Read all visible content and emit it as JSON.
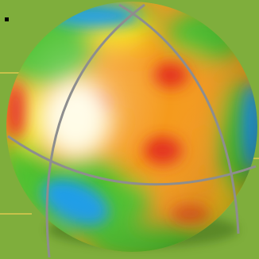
{
  "colors": {
    "background": "#7fae3c",
    "guide_line": "#c7c24a",
    "marker": "#000000",
    "grid_line": "#8e8e8e",
    "scale_hot": "#e4331c",
    "scale_warm": "#f59a1e",
    "scale_mid": "#f5e21e",
    "scale_cool": "#4cc12e",
    "scale_cold": "#1e9de8",
    "highlight": "#fffbe0"
  },
  "icons": {
    "marker": "square-marker-icon"
  }
}
